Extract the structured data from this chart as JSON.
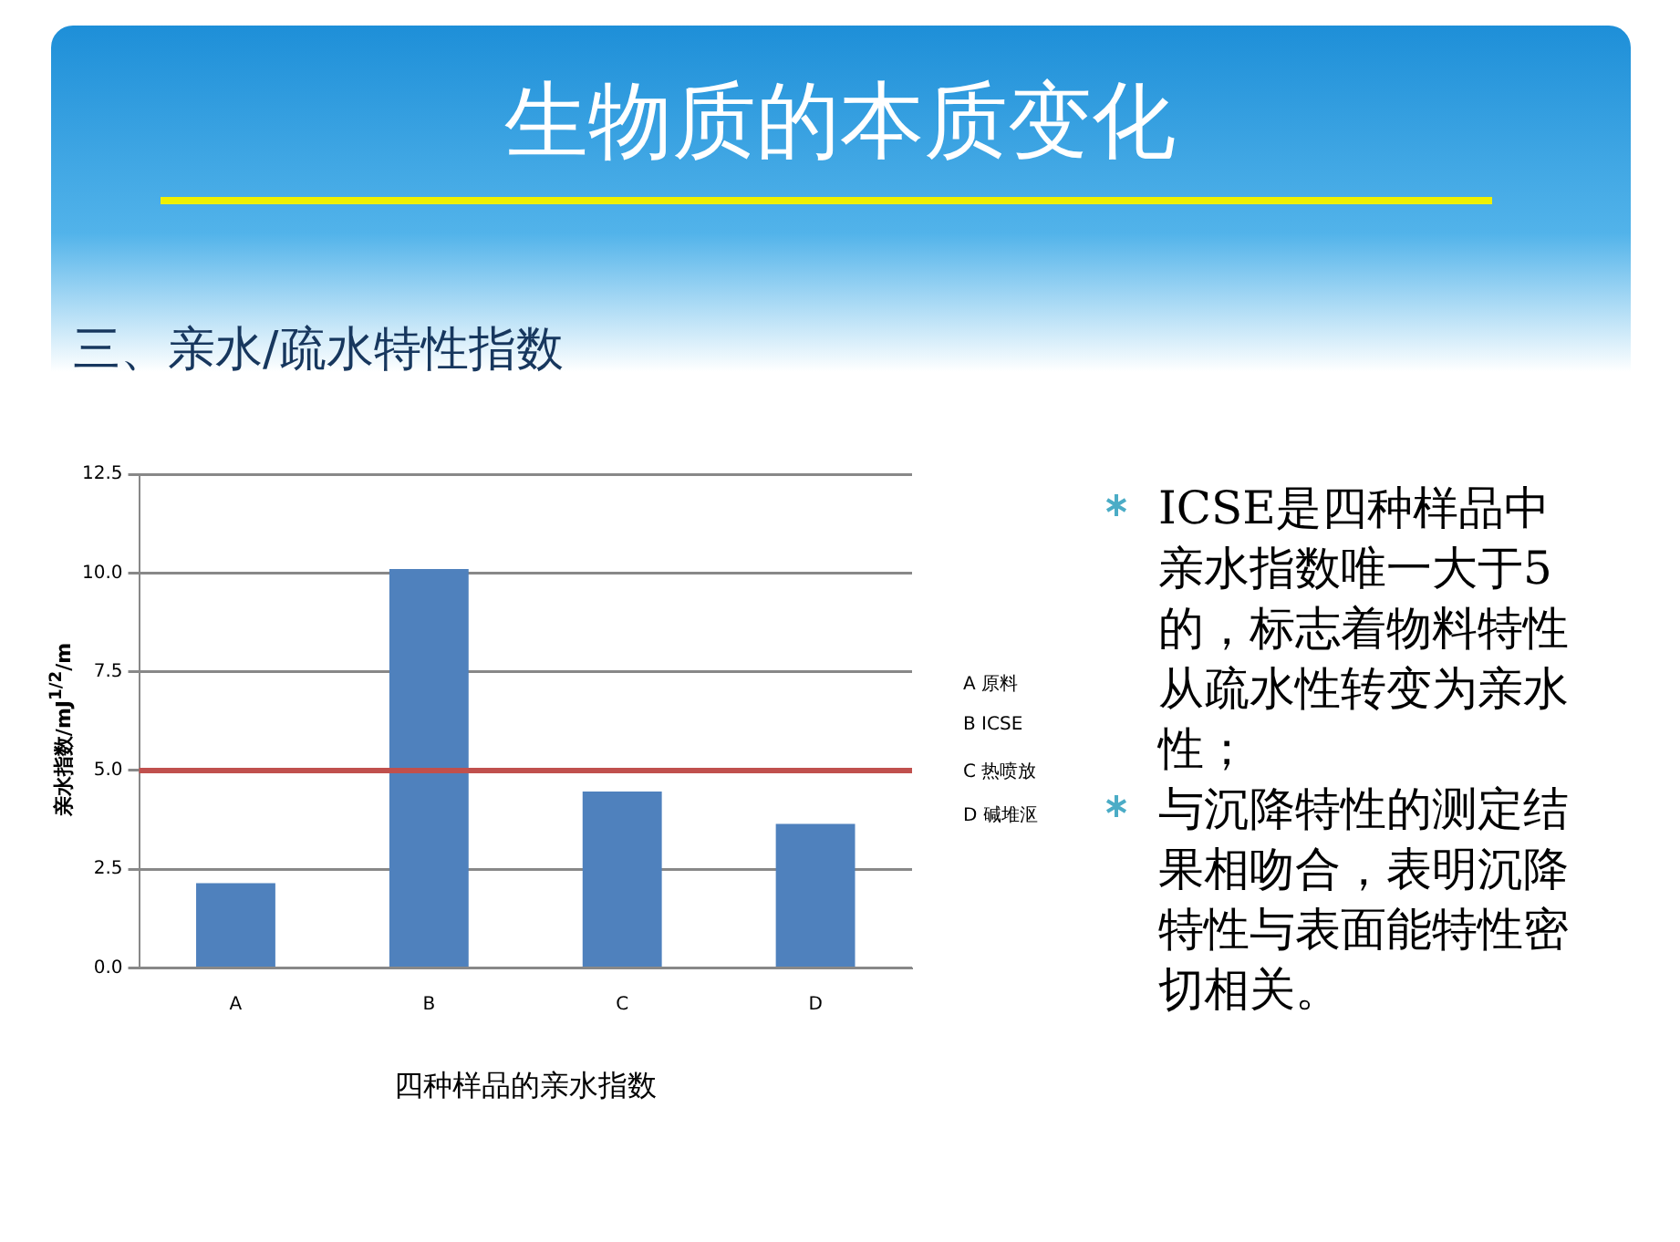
{
  "chart_data": {
    "type": "bar",
    "title": "生物质的本质变化",
    "subtitle": "三、亲水/疏水特性指数",
    "xlabel": "四种样品的亲水指数",
    "ylabel": "亲水指数/mJ$^{1/2}$/m",
    "categories": [
      "A",
      "B",
      "C",
      "D"
    ],
    "values": [
      2.15,
      10.1,
      4.47,
      3.65
    ],
    "color": "#4f81bd",
    "ylim": [
      0,
      12.5
    ],
    "yticks": [
      {
        "value": 0,
        "label": "0.0"
      },
      {
        "value": 2.5,
        "label": "2.5"
      },
      {
        "value": 5,
        "label": "5.0"
      },
      {
        "value": 7.5,
        "label": "7.5"
      },
      {
        "value": 10,
        "label": "10.0"
      },
      {
        "value": 12.5,
        "label": "12.5"
      }
    ],
    "grid": "y",
    "ref_lines": [
      {
        "axis": "y",
        "value": 5,
        "color": "#c0504d"
      }
    ],
    "annotations": [
      "A  原料",
      "B  ICSE",
      "C  热喷放",
      "D  碱堆沤",
      "ICSE是四种样品中亲水指数唯一大于5的，标志着物料特性从疏水性转变为亲水性；",
      "与沉降特性的测定结果相吻合，表明沉降特性与表面能特性密切相关。"
    ]
  }
}
